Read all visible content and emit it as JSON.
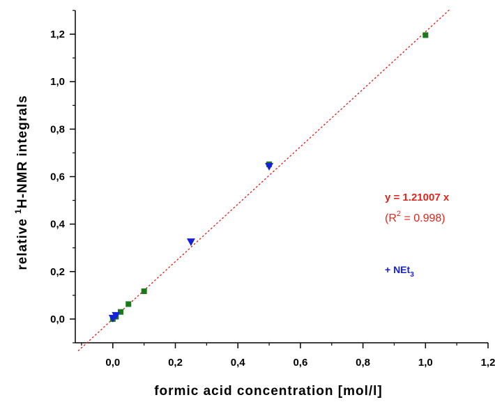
{
  "chart_data": {
    "type": "scatter",
    "xlabel": "formic acid concentration [mol/l]",
    "ylabel": {
      "prefix": "relative ",
      "superscript": "1",
      "suffix": "H-NMR integrals"
    },
    "xlim": [
      -0.12,
      1.2
    ],
    "ylim": [
      -0.1,
      1.3
    ],
    "x_ticks": [
      0.0,
      0.2,
      0.4,
      0.6,
      0.8,
      1.0,
      1.2
    ],
    "x_tick_labels": [
      "0,0",
      "0,2",
      "0,4",
      "0,6",
      "0,8",
      "1,0",
      "1,2"
    ],
    "y_ticks": [
      0.0,
      0.2,
      0.4,
      0.6,
      0.8,
      1.0,
      1.2
    ],
    "y_tick_labels": [
      "0,0",
      "0,2",
      "0,4",
      "0,6",
      "0,8",
      "1,0",
      "1,2"
    ],
    "grid": false,
    "series": [
      {
        "marker": "square",
        "color": "#1a7a1a",
        "points": [
          {
            "x": 0.0,
            "y": 0.0
          },
          {
            "x": 0.01,
            "y": 0.01
          },
          {
            "x": 0.025,
            "y": 0.03
          },
          {
            "x": 0.05,
            "y": 0.063
          },
          {
            "x": 0.1,
            "y": 0.117
          },
          {
            "x": 0.5,
            "y": 0.652
          },
          {
            "x": 1.0,
            "y": 1.196
          }
        ]
      },
      {
        "name": "+ NEt3",
        "marker": "triangle-down",
        "color": "#1520d8",
        "points": [
          {
            "x": 0.0,
            "y": 0.0
          },
          {
            "x": 0.01,
            "y": 0.012
          },
          {
            "x": 0.25,
            "y": 0.322
          },
          {
            "x": 0.5,
            "y": 0.64
          }
        ]
      }
    ],
    "fit_line": {
      "slope": 1.21007,
      "color": "#e0251b",
      "style": "dotted",
      "x_range": [
        -0.11,
        1.075
      ]
    },
    "annotations": {
      "equation": "y = 1.21007 x",
      "r2_prefix": "(R",
      "r2_superscript": "2",
      "r2_suffix": " = 0.998)",
      "net_label": "+ NEt",
      "net_subscript": "3"
    }
  }
}
